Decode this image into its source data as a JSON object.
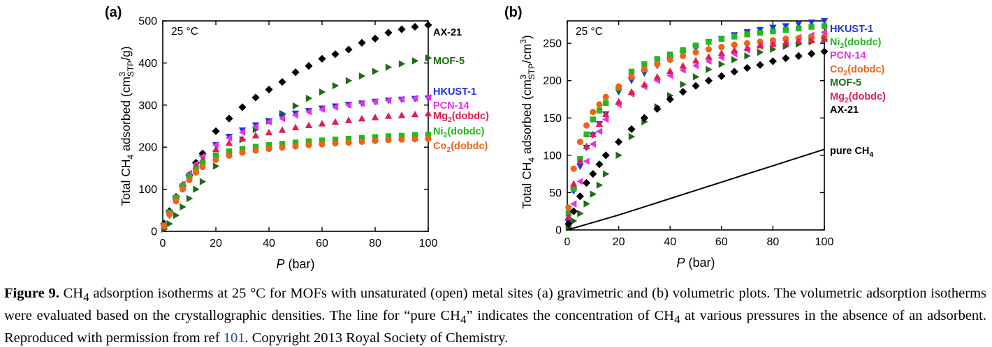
{
  "chart_data": [
    {
      "type": "scatter",
      "panel_label": "(a)",
      "temperature_label": "25 °C",
      "ylabel_parts": {
        "main": "Total CH",
        "sub1": "4",
        "mid": " adsorbed (cm",
        "sup": "3",
        "sub2": "STP",
        "end": "/g)"
      },
      "xlabel_parts": {
        "italic": "P",
        "rest": " (bar)"
      },
      "xlim": [
        0,
        100
      ],
      "ylim": [
        0,
        500
      ],
      "xticks": [
        0,
        20,
        40,
        60,
        80,
        100
      ],
      "yticks": [
        0,
        100,
        200,
        300,
        400,
        500
      ],
      "legend_placement": "right",
      "series": [
        {
          "name": "AX-21",
          "color": "#000000",
          "marker": "diamond",
          "x": [
            0.5,
            2.5,
            5,
            7.5,
            10,
            12.5,
            15,
            20,
            25,
            30,
            35,
            40,
            45,
            50,
            55,
            60,
            65,
            70,
            75,
            80,
            85,
            90,
            95,
            100
          ],
          "y": [
            18,
            48,
            82,
            108,
            133,
            163,
            185,
            238,
            268,
            295,
            318,
            337,
            355,
            378,
            393,
            410,
            421,
            432,
            448,
            458,
            472,
            480,
            486,
            490
          ]
        },
        {
          "name": "MOF-5",
          "color": "#1a6e10",
          "marker": "triangle-right",
          "x": [
            0.5,
            2.5,
            5,
            7.5,
            10,
            12.5,
            15,
            20,
            25,
            30,
            35,
            40,
            45,
            50,
            55,
            60,
            65,
            70,
            75,
            80,
            85,
            90,
            95,
            100
          ],
          "y": [
            5,
            18,
            38,
            58,
            78,
            100,
            118,
            155,
            188,
            218,
            242,
            262,
            280,
            298,
            316,
            331,
            346,
            358,
            369,
            380,
            390,
            398,
            405,
            412
          ]
        },
        {
          "name": "HKUST-1",
          "color": "#1e32e6",
          "marker": "triangle-down",
          "x": [
            0.5,
            2.5,
            5,
            7.5,
            10,
            12.5,
            15,
            20,
            25,
            30,
            35,
            40,
            45,
            50,
            55,
            60,
            65,
            70,
            75,
            80,
            85,
            90,
            95,
            100
          ],
          "y": [
            12,
            38,
            72,
            102,
            130,
            155,
            175,
            205,
            225,
            240,
            252,
            262,
            272,
            280,
            286,
            292,
            297,
            301,
            304,
            308,
            311,
            313,
            315,
            316
          ]
        },
        {
          "name": "PCN-14",
          "color": "#e632e6",
          "marker": "triangle-left",
          "x": [
            0.5,
            2.5,
            5,
            7.5,
            10,
            12.5,
            15,
            20,
            25,
            30,
            35,
            40,
            45,
            50,
            55,
            60,
            65,
            70,
            75,
            80,
            85,
            90,
            95,
            100
          ],
          "y": [
            15,
            45,
            80,
            112,
            138,
            160,
            178,
            205,
            222,
            235,
            248,
            260,
            268,
            276,
            284,
            290,
            295,
            300,
            304,
            308,
            311,
            314,
            316,
            318
          ]
        },
        {
          "name": "Mg2(dobdc)",
          "label_parts": {
            "main": "Mg",
            "sub": "2",
            "rest": "(dobdc)"
          },
          "color": "#e01e50",
          "marker": "triangle-up",
          "x": [
            0.5,
            2.5,
            5,
            7.5,
            10,
            12.5,
            15,
            20,
            25,
            30,
            35,
            40,
            45,
            50,
            55,
            60,
            65,
            70,
            75,
            80,
            85,
            90,
            95,
            100
          ],
          "y": [
            14,
            45,
            82,
            112,
            135,
            155,
            170,
            195,
            210,
            220,
            228,
            235,
            241,
            247,
            252,
            256,
            260,
            264,
            268,
            271,
            274,
            276,
            278,
            280
          ]
        },
        {
          "name": "Ni2(dobdc)",
          "label_parts": {
            "main": "Ni",
            "sub": "2",
            "rest": "(dobdc)"
          },
          "color": "#22b81e",
          "marker": "square",
          "x": [
            0.5,
            2.5,
            5,
            7.5,
            10,
            12.5,
            15,
            20,
            25,
            30,
            35,
            40,
            45,
            50,
            55,
            60,
            65,
            70,
            75,
            80,
            85,
            90,
            95,
            100
          ],
          "y": [
            14,
            45,
            80,
            108,
            130,
            148,
            162,
            180,
            190,
            196,
            201,
            205,
            208,
            211,
            214,
            216,
            218,
            220,
            222,
            224,
            226,
            227,
            229,
            230
          ]
        },
        {
          "name": "Co2(dobdc)",
          "label_parts": {
            "main": "Co",
            "sub": "2",
            "rest": "(dobdc)"
          },
          "color": "#f06418",
          "marker": "circle",
          "x": [
            0.5,
            2.5,
            5,
            7.5,
            10,
            12.5,
            15,
            20,
            25,
            30,
            35,
            40,
            45,
            50,
            55,
            60,
            65,
            70,
            75,
            80,
            85,
            90,
            95,
            100
          ],
          "y": [
            12,
            40,
            72,
            100,
            122,
            140,
            153,
            170,
            180,
            187,
            192,
            196,
            199,
            202,
            205,
            207,
            209,
            211,
            213,
            215,
            217,
            218,
            219,
            220
          ]
        }
      ]
    },
    {
      "type": "scatter",
      "panel_label": "(b)",
      "temperature_label": "25 °C",
      "ylabel_parts": {
        "main": "Total CH",
        "sub1": "4",
        "mid": " adsorbed (cm",
        "sup": "3",
        "sub2": "STP",
        "end": "/cm",
        "sup2": "3",
        "close": ")"
      },
      "xlabel_parts": {
        "italic": "P",
        "rest": " (bar)"
      },
      "xlim": [
        0,
        100
      ],
      "ylim": [
        0,
        280
      ],
      "xticks": [
        0,
        20,
        40,
        60,
        80,
        100
      ],
      "yticks": [
        0,
        50,
        100,
        150,
        200,
        250
      ],
      "legend_placement": "top-right",
      "series": [
        {
          "name": "HKUST-1",
          "color": "#1e32e6",
          "marker": "triangle-down",
          "x": [
            0.5,
            2.5,
            5,
            7.5,
            10,
            12.5,
            15,
            20,
            25,
            30,
            35,
            40,
            45,
            50,
            55,
            60,
            65,
            70,
            75,
            80,
            85,
            90,
            95,
            100
          ],
          "y": [
            10,
            52,
            85,
            110,
            127,
            142,
            155,
            185,
            200,
            210,
            220,
            228,
            236,
            244,
            251,
            256,
            261,
            265,
            268,
            271,
            273,
            276,
            278,
            280
          ]
        },
        {
          "name": "Ni2(dobdc)",
          "label_parts": {
            "main": "Ni",
            "sub": "2",
            "rest": "(dobdc)"
          },
          "color": "#22b81e",
          "marker": "square",
          "x": [
            0.5,
            2.5,
            5,
            7.5,
            10,
            12.5,
            15,
            20,
            25,
            30,
            35,
            40,
            45,
            50,
            55,
            60,
            65,
            70,
            75,
            80,
            85,
            90,
            95,
            100
          ],
          "y": [
            22,
            55,
            95,
            128,
            148,
            160,
            170,
            190,
            212,
            222,
            229,
            235,
            241,
            247,
            252,
            256,
            259,
            262,
            264,
            266,
            268,
            270,
            272,
            273
          ]
        },
        {
          "name": "PCN-14",
          "color": "#e632e6",
          "marker": "triangle-left",
          "x": [
            0.5,
            2.5,
            5,
            7.5,
            10,
            12.5,
            15,
            20,
            25,
            30,
            35,
            40,
            45,
            50,
            55,
            60,
            65,
            70,
            75,
            80,
            85,
            90,
            95,
            100
          ],
          "y": [
            8,
            35,
            65,
            92,
            115,
            132,
            148,
            168,
            182,
            192,
            200,
            207,
            214,
            220,
            226,
            231,
            236,
            241,
            246,
            250,
            254,
            258,
            261,
            265
          ]
        },
        {
          "name": "Co2(dobdc)",
          "label_parts": {
            "main": "Co",
            "sub": "2",
            "rest": "(dobdc)"
          },
          "color": "#f06418",
          "marker": "circle",
          "x": [
            0.5,
            2.5,
            5,
            7.5,
            10,
            12.5,
            15,
            20,
            25,
            30,
            35,
            40,
            45,
            50,
            55,
            60,
            65,
            70,
            75,
            80,
            85,
            90,
            95,
            100
          ],
          "y": [
            30,
            82,
            118,
            140,
            158,
            168,
            178,
            192,
            205,
            215,
            222,
            228,
            233,
            238,
            242,
            245,
            248,
            250,
            252,
            254,
            256,
            257,
            258,
            259
          ]
        },
        {
          "name": "MOF-5",
          "color": "#1a6e10",
          "marker": "triangle-right",
          "x": [
            0.5,
            2.5,
            5,
            7.5,
            10,
            12.5,
            15,
            20,
            25,
            30,
            35,
            40,
            45,
            50,
            55,
            60,
            65,
            70,
            75,
            80,
            85,
            90,
            95,
            100
          ],
          "y": [
            3,
            12,
            22,
            35,
            48,
            60,
            75,
            100,
            125,
            145,
            165,
            180,
            195,
            205,
            215,
            222,
            228,
            233,
            238,
            242,
            246,
            249,
            252,
            255
          ]
        },
        {
          "name": "Mg2(dobdc)",
          "label_parts": {
            "main": "Mg",
            "sub": "2",
            "rest": "(dobdc)"
          },
          "color": "#e01e50",
          "marker": "triangle-up",
          "x": [
            0.5,
            2.5,
            5,
            7.5,
            10,
            12.5,
            15,
            20,
            25,
            30,
            35,
            40,
            45,
            50,
            55,
            60,
            65,
            70,
            75,
            80,
            85,
            90,
            95,
            100
          ],
          "y": [
            18,
            62,
            92,
            112,
            128,
            142,
            155,
            172,
            185,
            195,
            205,
            213,
            220,
            227,
            232,
            237,
            241,
            244,
            247,
            249,
            251,
            253,
            254,
            256
          ]
        },
        {
          "name": "AX-21",
          "color": "#000000",
          "marker": "diamond",
          "x": [
            0.5,
            2.5,
            5,
            7.5,
            10,
            12.5,
            15,
            20,
            25,
            30,
            35,
            40,
            45,
            50,
            55,
            60,
            65,
            70,
            75,
            80,
            85,
            90,
            95,
            100
          ],
          "y": [
            8,
            25,
            45,
            63,
            75,
            88,
            100,
            118,
            135,
            150,
            162,
            175,
            185,
            193,
            200,
            206,
            212,
            217,
            221,
            226,
            230,
            233,
            236,
            239
          ]
        },
        {
          "name": "pure CH4",
          "label_parts": {
            "main": "pure CH",
            "sub": "4",
            "rest": ""
          },
          "color": "#000000",
          "marker": "line",
          "x": [
            0,
            10,
            20,
            30,
            40,
            50,
            60,
            70,
            80,
            90,
            100
          ],
          "y": [
            0,
            10,
            20,
            31,
            42,
            53,
            64,
            75,
            86,
            97,
            108
          ]
        }
      ]
    }
  ],
  "caption": {
    "figure_label": "Figure 9.",
    "text_1": " CH",
    "sub_1": "4",
    "text_2": " adsorption isotherms at 25 °C for MOFs with unsaturated (open) metal sites (a) gravimetric and (b) volumetric plots. The volumetric adsorption isotherms were evaluated based on the crystallographic densities. The line for “pure CH",
    "sub_2": "4",
    "text_3": "” indicates the concentration of CH",
    "sub_3": "4",
    "text_4": " at various pressures in the absence of an adsorbent. Reproduced with permission from ref ",
    "ref_number": "101",
    "text_5": ". Copyright 2013 Royal Society of Chemistry."
  }
}
